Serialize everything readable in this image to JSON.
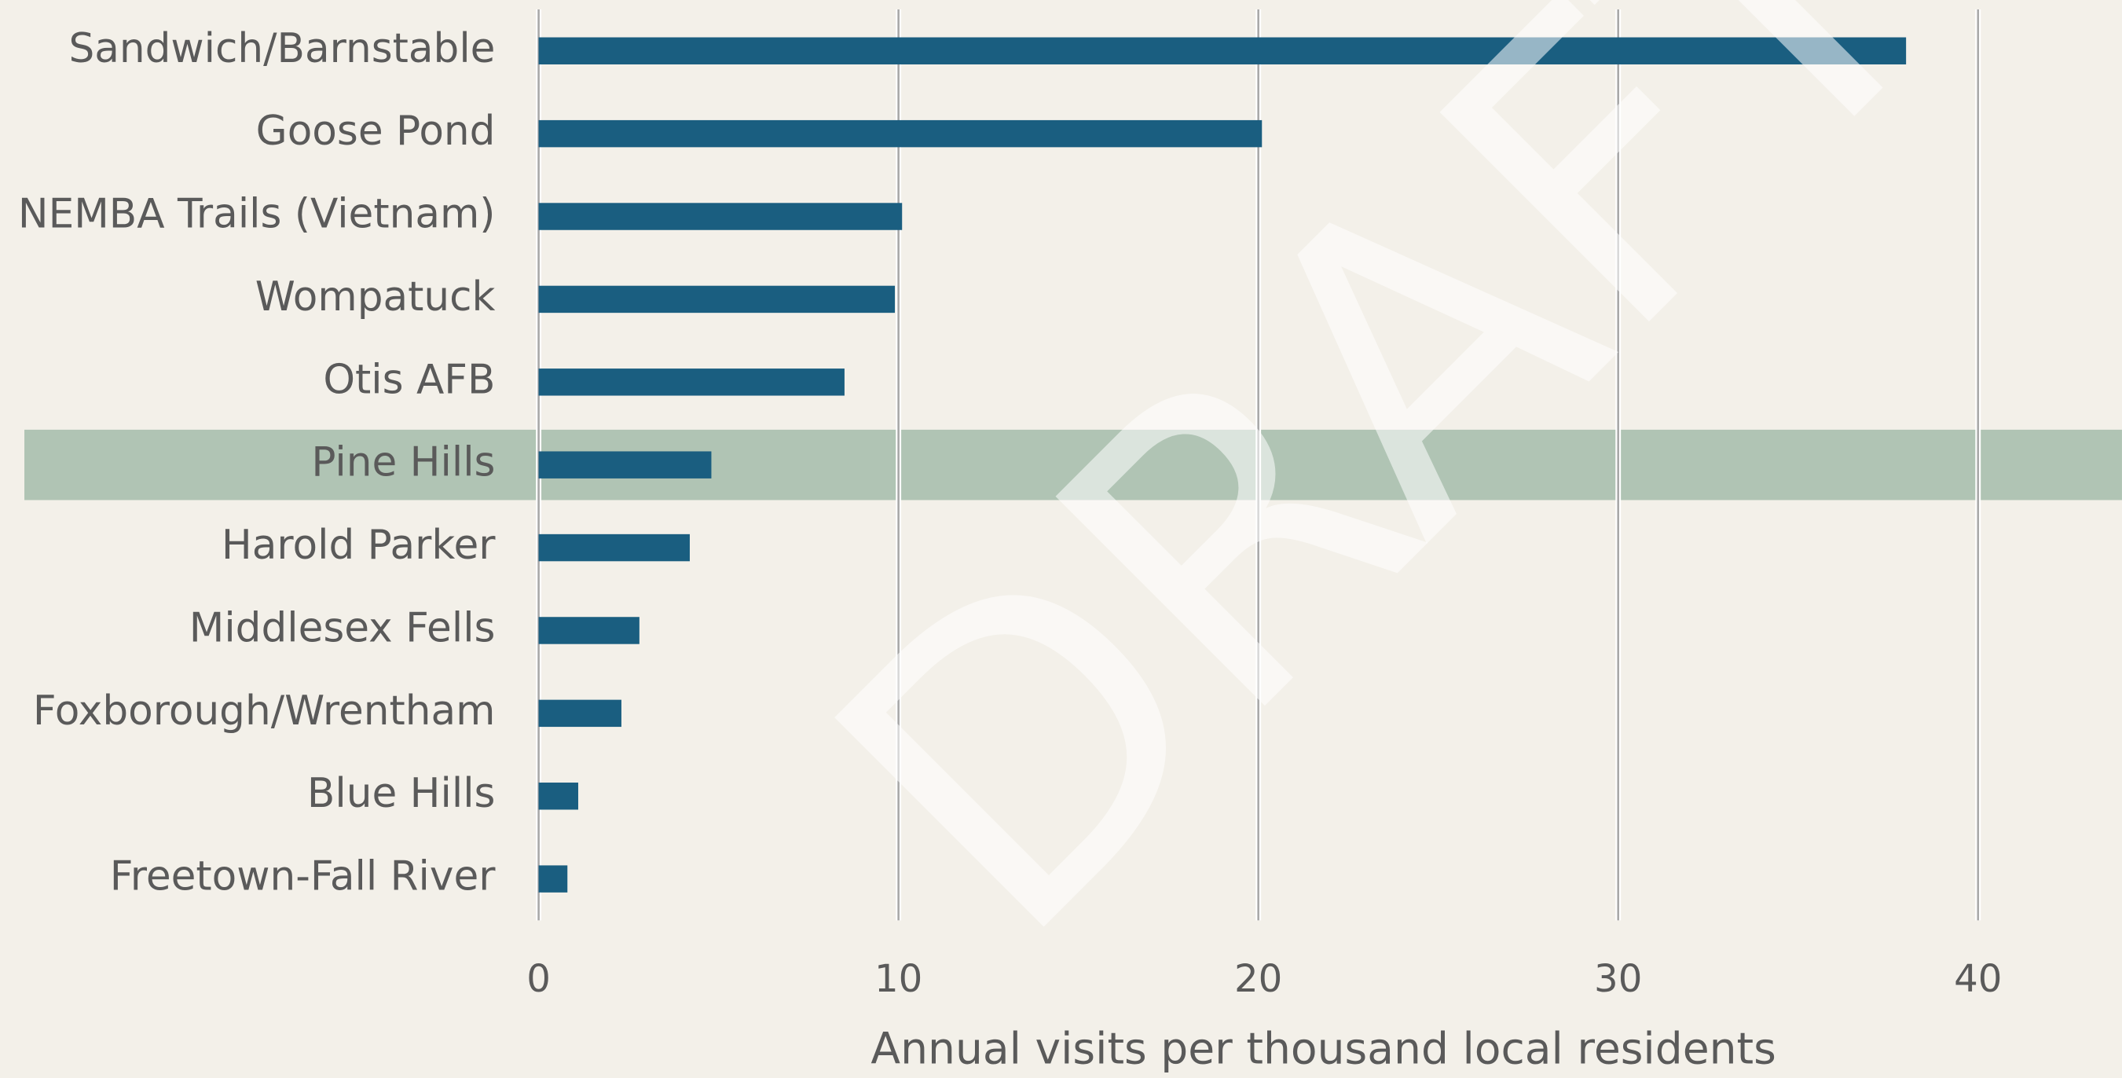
{
  "chart_data": {
    "type": "barh",
    "categories": [
      "Sandwich/Barnstable",
      "Goose Pond",
      "NEMBA Trails (Vietnam)",
      "Wompatuck",
      "Otis AFB",
      "Pine Hills",
      "Harold Parker",
      "Middlesex Fells",
      "Foxborough/Wrentham",
      "Blue Hills",
      "Freetown-Fall River"
    ],
    "values": [
      38.0,
      20.1,
      10.1,
      9.9,
      8.5,
      4.8,
      4.2,
      2.8,
      2.3,
      1.1,
      0.8
    ],
    "color": "#1a5e80",
    "xlabel": "Annual visits per thousand local residents",
    "xlim": [
      0,
      44
    ],
    "xticks": [
      0,
      10,
      20,
      30,
      40
    ],
    "grid": true,
    "highlight": "Pine Hills",
    "highlight_color": "#b0c4b4",
    "watermark": "DRAFT"
  }
}
